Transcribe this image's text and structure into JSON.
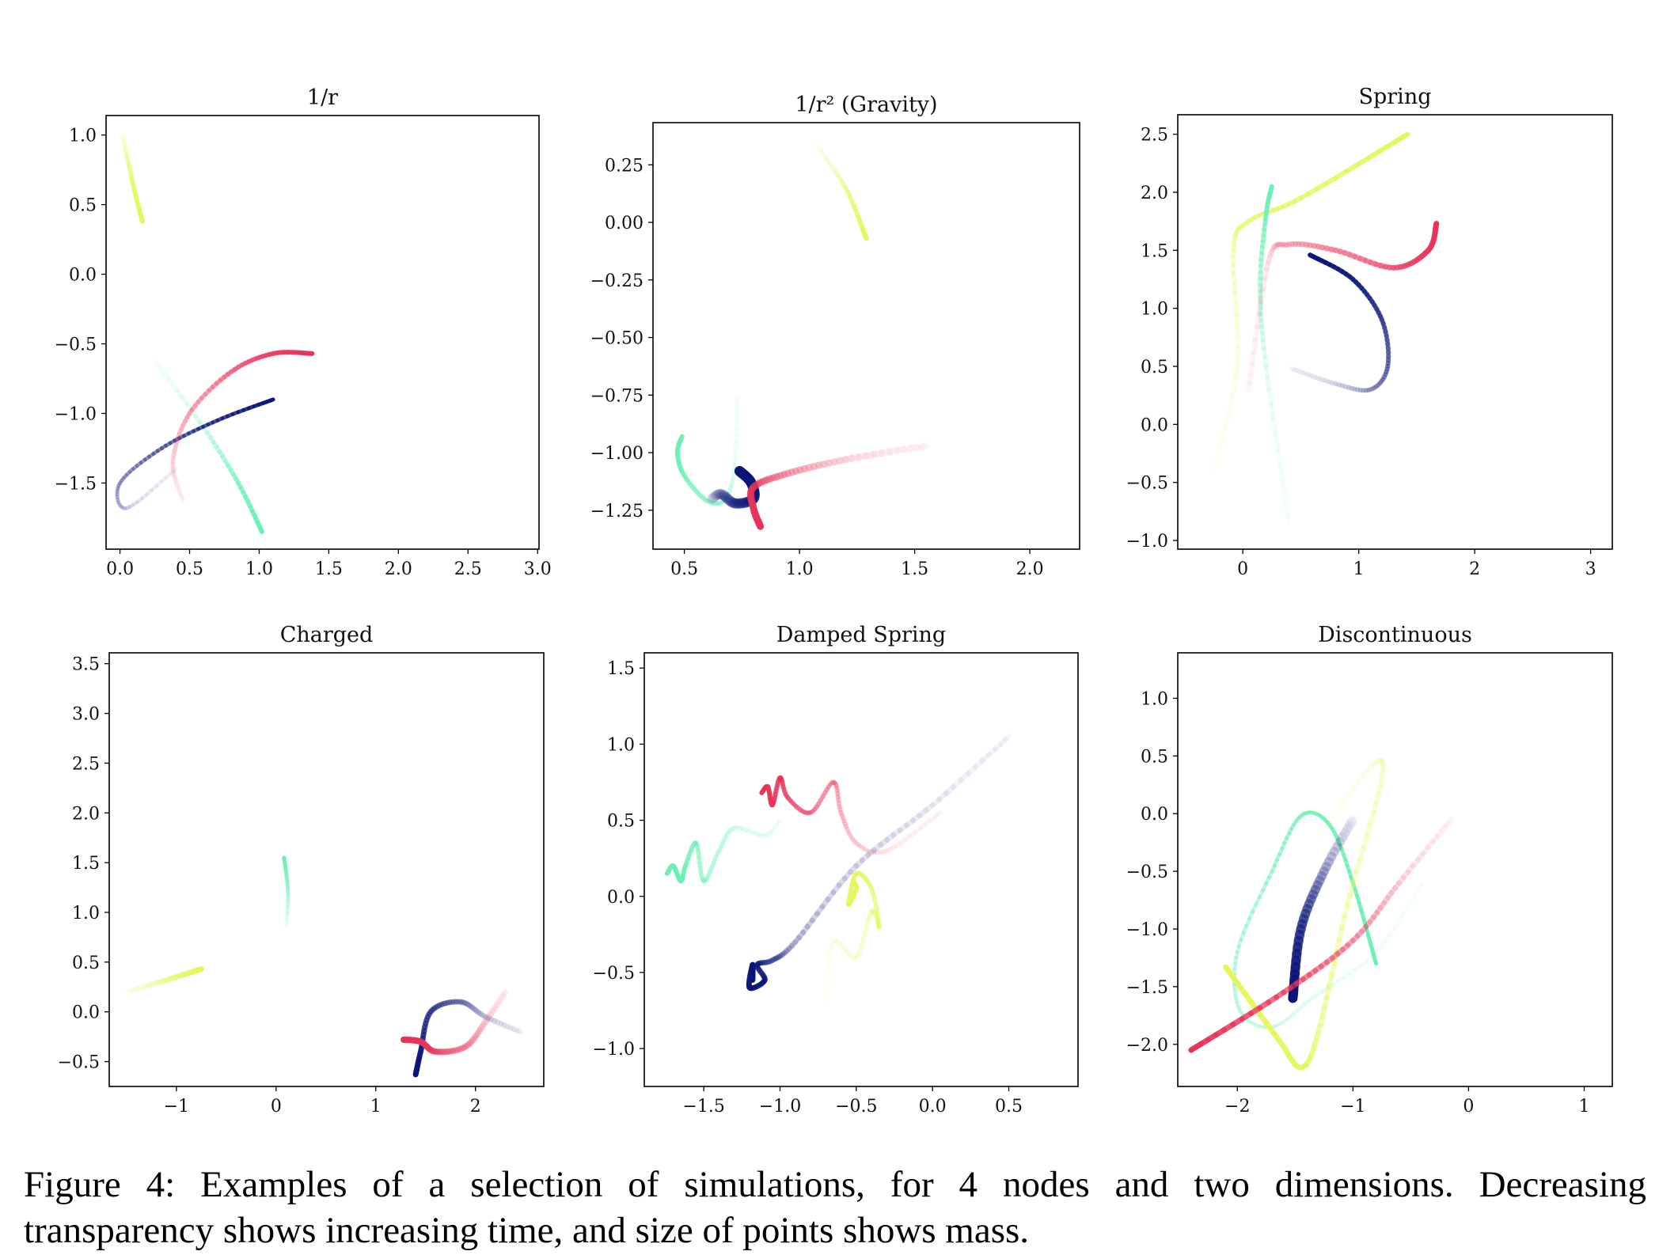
{
  "colors": {
    "yellow": "#e4f75a",
    "green": "#6cf0b6",
    "navy": "#0a1577",
    "red": "#e8345a"
  },
  "chart_data": [
    {
      "type": "line",
      "title": "1/r",
      "xlim": [
        -0.1,
        3.01
      ],
      "ylim": [
        -1.975,
        1.14
      ],
      "xticks": [
        0,
        0.5,
        1,
        1.5,
        2,
        2.5,
        3
      ],
      "xtick_labels": [
        "0.0",
        "0.5",
        "1.0",
        "1.5",
        "2.0",
        "2.5",
        "3.0"
      ],
      "yticks": [
        1,
        0.5,
        0,
        -0.5,
        -1,
        -1.5
      ],
      "ytick_labels": [
        "1.0",
        "0.5",
        "0.0",
        "−0.5",
        "−1.0",
        "−1.5"
      ],
      "series": [
        {
          "name": "yellow",
          "width": 6,
          "points": [
            [
              0.02,
              1.0
            ],
            [
              0.05,
              0.85
            ],
            [
              0.1,
              0.62
            ],
            [
              0.16,
              0.38
            ]
          ]
        },
        {
          "name": "green",
          "width": 6,
          "points": [
            [
              0.25,
              -0.62
            ],
            [
              0.6,
              -1.1
            ],
            [
              0.85,
              -1.5
            ],
            [
              1.02,
              -1.85
            ]
          ]
        },
        {
          "name": "navy",
          "width": 5,
          "points": [
            [
              0.4,
              -1.4
            ],
            [
              0.05,
              -1.68
            ],
            [
              0.0,
              -1.5
            ],
            [
              0.3,
              -1.25
            ],
            [
              0.7,
              -1.05
            ],
            [
              1.1,
              -0.9
            ]
          ]
        },
        {
          "name": "red",
          "width": 6,
          "points": [
            [
              0.45,
              -1.62
            ],
            [
              0.38,
              -1.35
            ],
            [
              0.5,
              -1.0
            ],
            [
              0.8,
              -0.7
            ],
            [
              1.1,
              -0.57
            ],
            [
              1.38,
              -0.57
            ]
          ]
        }
      ]
    },
    {
      "type": "line",
      "title": "1/r² (Gravity)",
      "xlim": [
        0.364,
        2.216
      ],
      "ylim": [
        -1.419,
        0.433
      ],
      "xticks": [
        0.5,
        1,
        1.5,
        2
      ],
      "xtick_labels": [
        "0.5",
        "1.0",
        "1.5",
        "2.0"
      ],
      "yticks": [
        0.25,
        0,
        -0.25,
        -0.5,
        -0.75,
        -1,
        -1.25
      ],
      "ytick_labels": [
        "0.25",
        "0.00",
        "−0.25",
        "−0.50",
        "−0.75",
        "−1.00",
        "−1.25"
      ],
      "series": [
        {
          "name": "yellow",
          "width": 6,
          "points": [
            [
              1.07,
              0.34
            ],
            [
              1.2,
              0.15
            ],
            [
              1.29,
              -0.07
            ]
          ]
        },
        {
          "name": "green",
          "width": 6,
          "points": [
            [
              0.73,
              -0.76
            ],
            [
              0.72,
              -1.05
            ],
            [
              0.68,
              -1.2
            ],
            [
              0.6,
              -1.21
            ],
            [
              0.5,
              -1.1
            ],
            [
              0.47,
              -1.0
            ],
            [
              0.49,
              -0.93
            ]
          ]
        },
        {
          "name": "navy",
          "width": 13,
          "points": [
            [
              0.62,
              -1.2
            ],
            [
              0.66,
              -1.18
            ],
            [
              0.72,
              -1.22
            ],
            [
              0.8,
              -1.2
            ],
            [
              0.79,
              -1.13
            ],
            [
              0.74,
              -1.08
            ]
          ]
        },
        {
          "name": "red",
          "width": 9,
          "points": [
            [
              1.55,
              -0.97
            ],
            [
              1.2,
              -1.03
            ],
            [
              0.95,
              -1.09
            ],
            [
              0.8,
              -1.15
            ],
            [
              0.8,
              -1.24
            ],
            [
              0.83,
              -1.32
            ]
          ]
        }
      ]
    },
    {
      "type": "line",
      "title": "Spring",
      "xlim": [
        -0.561,
        3.187
      ],
      "ylim": [
        -1.075,
        2.668
      ],
      "xticks": [
        0,
        1,
        2,
        3
      ],
      "xtick_labels": [
        "0",
        "1",
        "2",
        "3"
      ],
      "yticks": [
        2.5,
        2,
        1.5,
        1,
        0.5,
        0,
        -0.5,
        -1
      ],
      "ytick_labels": [
        "2.5",
        "2.0",
        "1.5",
        "1.0",
        "0.5",
        "0.0",
        "−0.5",
        "−1.0"
      ],
      "series": [
        {
          "name": "yellow",
          "width": 6,
          "points": [
            [
              -0.25,
              -0.4
            ],
            [
              -0.05,
              0.5
            ],
            [
              -0.08,
              1.5
            ],
            [
              0.05,
              1.75
            ],
            [
              0.5,
              1.95
            ],
            [
              1.42,
              2.5
            ]
          ]
        },
        {
          "name": "green",
          "width": 6,
          "points": [
            [
              0.4,
              -0.85
            ],
            [
              0.2,
              0.5
            ],
            [
              0.15,
              1.2
            ],
            [
              0.2,
              1.8
            ],
            [
              0.25,
              2.05
            ]
          ]
        },
        {
          "name": "red",
          "width": 7,
          "points": [
            [
              0.05,
              0.3
            ],
            [
              0.22,
              1.4
            ],
            [
              0.4,
              1.55
            ],
            [
              0.8,
              1.5
            ],
            [
              1.3,
              1.35
            ],
            [
              1.6,
              1.5
            ],
            [
              1.67,
              1.73
            ]
          ]
        },
        {
          "name": "navy",
          "width": 6,
          "points": [
            [
              0.42,
              0.48
            ],
            [
              0.8,
              0.35
            ],
            [
              1.1,
              0.3
            ],
            [
              1.25,
              0.5
            ],
            [
              1.2,
              0.9
            ],
            [
              0.95,
              1.25
            ],
            [
              0.58,
              1.46
            ]
          ]
        }
      ]
    },
    {
      "type": "line",
      "title": "Charged",
      "xlim": [
        -1.674,
        2.685
      ],
      "ylim": [
        -0.75,
        3.609
      ],
      "xticks": [
        -1,
        0,
        1,
        2
      ],
      "xtick_labels": [
        "−1",
        "0",
        "1",
        "2"
      ],
      "yticks": [
        3.5,
        3,
        2.5,
        2,
        1.5,
        1,
        0.5,
        0,
        -0.5
      ],
      "ytick_labels": [
        "3.5",
        "3.0",
        "2.5",
        "2.0",
        "1.5",
        "1.0",
        "0.5",
        "0.0",
        "−0.5"
      ],
      "series": [
        {
          "name": "yellow",
          "width": 7,
          "points": [
            [
              -1.5,
              0.2
            ],
            [
              -1.1,
              0.32
            ],
            [
              -0.75,
              0.43
            ]
          ]
        },
        {
          "name": "green",
          "width": 5,
          "points": [
            [
              0.1,
              0.85
            ],
            [
              0.12,
              1.2
            ],
            [
              0.08,
              1.55
            ]
          ]
        },
        {
          "name": "navy",
          "width": 7,
          "points": [
            [
              2.45,
              -0.2
            ],
            [
              2.1,
              -0.05
            ],
            [
              1.85,
              0.1
            ],
            [
              1.55,
              0.0
            ],
            [
              1.45,
              -0.4
            ],
            [
              1.4,
              -0.63
            ]
          ]
        },
        {
          "name": "red",
          "width": 8,
          "points": [
            [
              2.3,
              0.2
            ],
            [
              2.1,
              -0.1
            ],
            [
              1.9,
              -0.35
            ],
            [
              1.6,
              -0.4
            ],
            [
              1.45,
              -0.3
            ],
            [
              1.28,
              -0.28
            ]
          ]
        }
      ]
    },
    {
      "type": "line",
      "title": "Damped Spring",
      "xlim": [
        -1.89,
        0.954
      ],
      "ylim": [
        -1.249,
        1.6
      ],
      "xticks": [
        -1.5,
        -1,
        -0.5,
        0,
        0.5
      ],
      "xtick_labels": [
        "−1.5",
        "−1.0",
        "−0.5",
        "0.0",
        "0.5"
      ],
      "yticks": [
        1.5,
        1,
        0.5,
        0,
        -0.5,
        -1
      ],
      "ytick_labels": [
        "1.5",
        "1.0",
        "0.5",
        "0.0",
        "−0.5",
        "−1.0"
      ],
      "series": [
        {
          "name": "green",
          "width": 6,
          "points": [
            [
              -1.0,
              0.5
            ],
            [
              -1.1,
              0.4
            ],
            [
              -1.3,
              0.45
            ],
            [
              -1.4,
              0.3
            ],
            [
              -1.5,
              0.1
            ],
            [
              -1.55,
              0.35
            ],
            [
              -1.62,
              0.2
            ],
            [
              -1.65,
              0.1
            ],
            [
              -1.7,
              0.2
            ],
            [
              -1.74,
              0.15
            ]
          ]
        },
        {
          "name": "red",
          "width": 6,
          "points": [
            [
              0.05,
              0.55
            ],
            [
              -0.3,
              0.3
            ],
            [
              -0.5,
              0.35
            ],
            [
              -0.6,
              0.55
            ],
            [
              -0.65,
              0.75
            ],
            [
              -0.8,
              0.55
            ],
            [
              -0.95,
              0.65
            ],
            [
              -1.0,
              0.78
            ],
            [
              -1.05,
              0.6
            ],
            [
              -1.08,
              0.72
            ],
            [
              -1.12,
              0.68
            ]
          ]
        },
        {
          "name": "navy",
          "width": 7,
          "points": [
            [
              0.5,
              1.05
            ],
            [
              0.0,
              0.6
            ],
            [
              -0.5,
              0.2
            ],
            [
              -0.9,
              -0.3
            ],
            [
              -1.05,
              -0.42
            ],
            [
              -1.15,
              -0.45
            ],
            [
              -1.1,
              -0.55
            ],
            [
              -1.2,
              -0.6
            ],
            [
              -1.18,
              -0.45
            ],
            [
              -1.18,
              -0.55
            ]
          ]
        },
        {
          "name": "yellow",
          "width": 6,
          "points": [
            [
              -0.7,
              -0.7
            ],
            [
              -0.65,
              -0.3
            ],
            [
              -0.5,
              -0.4
            ],
            [
              -0.4,
              -0.1
            ],
            [
              -0.35,
              -0.2
            ],
            [
              -0.4,
              0.05
            ],
            [
              -0.5,
              0.15
            ],
            [
              -0.55,
              -0.05
            ],
            [
              -0.5,
              0.05
            ],
            [
              -0.52,
              0.1
            ]
          ]
        }
      ]
    },
    {
      "type": "line",
      "title": "Discontinuous",
      "xlim": [
        -2.515,
        1.243
      ],
      "ylim": [
        -2.365,
        1.394
      ],
      "xticks": [
        -2,
        -1,
        0,
        1
      ],
      "xtick_labels": [
        "−2",
        "−1",
        "0",
        "1"
      ],
      "yticks": [
        1,
        0.5,
        0,
        -0.5,
        -1,
        -1.5,
        -2
      ],
      "ytick_labels": [
        "1.0",
        "0.5",
        "0.0",
        "−0.5",
        "−1.0",
        "−1.5",
        "−2.0"
      ],
      "series": [
        {
          "name": "green",
          "width": 5,
          "points": [
            [
              -0.4,
              -0.6
            ],
            [
              -0.8,
              -1.2
            ],
            [
              -1.35,
              -1.6
            ],
            [
              -1.7,
              -1.85
            ],
            [
              -1.98,
              -1.7
            ],
            [
              -2.0,
              -1.2
            ],
            [
              -1.7,
              -0.5
            ],
            [
              -1.45,
              -0.02
            ],
            [
              -1.2,
              -0.1
            ],
            [
              -1.0,
              -0.6
            ],
            [
              -0.8,
              -1.3
            ]
          ]
        },
        {
          "name": "yellow",
          "width": 7,
          "points": [
            [
              -1.3,
              -0.2
            ],
            [
              -0.85,
              0.4
            ],
            [
              -0.75,
              0.3
            ],
            [
              -1.05,
              -0.8
            ],
            [
              -1.3,
              -1.9
            ],
            [
              -1.45,
              -2.2
            ],
            [
              -1.65,
              -1.95
            ],
            [
              -2.1,
              -1.33
            ]
          ]
        },
        {
          "name": "navy",
          "width": 12,
          "points": [
            [
              -1.0,
              -0.05
            ],
            [
              -1.25,
              -0.5
            ],
            [
              -1.45,
              -1.0
            ],
            [
              -1.52,
              -1.6
            ]
          ]
        },
        {
          "name": "red",
          "width": 7,
          "points": [
            [
              -0.15,
              -0.05
            ],
            [
              -0.6,
              -0.6
            ],
            [
              -1.0,
              -1.1
            ],
            [
              -1.6,
              -1.55
            ],
            [
              -2.4,
              -2.05
            ]
          ]
        }
      ]
    }
  ],
  "caption": {
    "line1": "Figure 4:  Examples of a selection of simulations, for 4 nodes and two dimensions.  Decreasing",
    "line2": "transparency shows increasing time, and size of points shows mass."
  }
}
